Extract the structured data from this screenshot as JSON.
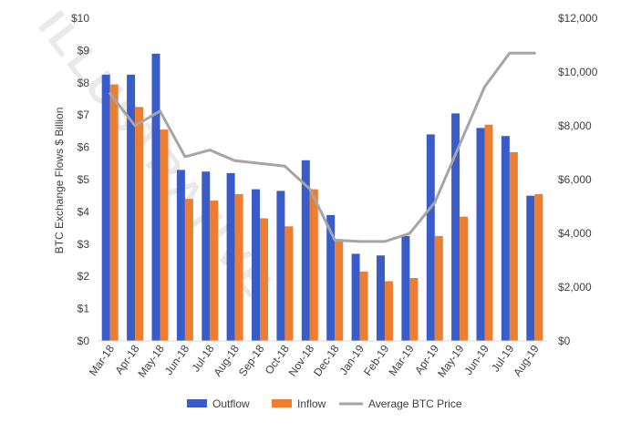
{
  "watermark": "ILLUSTRATIVE",
  "chart_data": {
    "type": "bar",
    "title": "",
    "categories": [
      "Mar-18",
      "Apr-18",
      "May-18",
      "Jun-18",
      "Jul-18",
      "Aug-18",
      "Sep-18",
      "Oct-18",
      "Nov-18",
      "Dec-18",
      "Jan-19",
      "Feb-19",
      "Mar-19",
      "Apr-19",
      "May-19",
      "Jun-19",
      "Jul-19",
      "Aug-19"
    ],
    "ylabel": "BTC Exchange Flows $ Billion",
    "ylim": [
      0,
      10
    ],
    "y_ticks": [
      "$0",
      "$1",
      "$2",
      "$3",
      "$4",
      "$5",
      "$6",
      "$7",
      "$8",
      "$9",
      "$10"
    ],
    "y2lim": [
      0,
      12000
    ],
    "y2_ticks": [
      "$0",
      "$2,000",
      "$4,000",
      "$6,000",
      "$8,000",
      "$10,000",
      "$12,000"
    ],
    "grid": false,
    "legend_position": "bottom",
    "series": [
      {
        "name": "Outflow",
        "type": "bar",
        "axis": "left",
        "color": "#3a5cc9",
        "values": [
          8.25,
          8.25,
          8.9,
          5.3,
          5.25,
          5.2,
          4.7,
          4.65,
          5.6,
          3.9,
          2.7,
          2.65,
          3.25,
          6.4,
          7.05,
          6.6,
          6.35,
          4.5
        ]
      },
      {
        "name": "Inflow",
        "type": "bar",
        "axis": "left",
        "color": "#ed7d31",
        "values": [
          7.95,
          7.25,
          6.55,
          4.4,
          4.35,
          4.55,
          3.8,
          3.55,
          4.7,
          3.1,
          2.15,
          1.85,
          1.95,
          3.25,
          3.85,
          6.7,
          5.85,
          4.55
        ]
      },
      {
        "name": "Average BTC Price",
        "type": "line",
        "axis": "right",
        "color": "#a5a5a5",
        "values": [
          9200,
          8000,
          8550,
          6850,
          7100,
          6700,
          6600,
          6500,
          5650,
          3750,
          3700,
          3700,
          4000,
          5150,
          7300,
          9450,
          10700,
          10700
        ]
      }
    ]
  }
}
